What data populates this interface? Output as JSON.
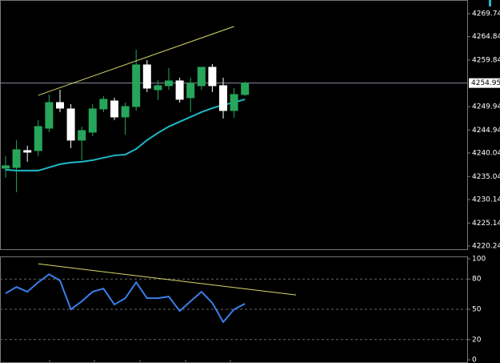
{
  "chart_data": [
    {
      "type": "candlestick",
      "categories": [
        null,
        null,
        null,
        null,
        null,
        null,
        null,
        null,
        null,
        null,
        null,
        null,
        null,
        null,
        null,
        null,
        null,
        null,
        null,
        null,
        null,
        null,
        null
      ],
      "open": [
        4236.81,
        4236.98,
        4240.57,
        4240.57,
        4245.34,
        4250.8,
        4249.44,
        4242.79,
        4244.49,
        4249.44,
        4251.14,
        4247.73,
        4249.95,
        4258.82,
        4253.53,
        4254.39,
        4255.41,
        4251.83,
        4254.39,
        4258.31,
        4254.39,
        4249.1,
        4252.51
      ],
      "high": [
        4239.37,
        4242.79,
        4241.59,
        4247.05,
        4252.51,
        4253.53,
        4250.46,
        4245.69,
        4250.46,
        4252.17,
        4251.83,
        4250.8,
        4262.06,
        4259.84,
        4255.58,
        4258.14,
        4256.09,
        4256.09,
        4258.31,
        4258.99,
        4256.09,
        4253.87,
        4255.24
      ],
      "low": [
        4234.77,
        4231.7,
        4238.18,
        4239.37,
        4244.49,
        4248.76,
        4241.08,
        4238.52,
        4243.64,
        4248.76,
        4247.05,
        4243.98,
        4249.1,
        4253.02,
        4251.32,
        4253.53,
        4250.8,
        4248.76,
        4253.53,
        4253.02,
        4247.39,
        4247.56,
        4252.17
      ],
      "close": [
        4237.33,
        4240.74,
        4240.23,
        4245.69,
        4250.8,
        4249.61,
        4242.79,
        4244.83,
        4249.44,
        4251.49,
        4247.73,
        4249.95,
        4258.82,
        4253.87,
        4254.39,
        4255.41,
        4251.49,
        4254.9,
        4258.31,
        4254.39,
        4249.1,
        4252.51,
        4254.95
      ],
      "up_color": "#26a65b",
      "down_color": "#ffffff",
      "ma": {
        "color": "#1fb8c9",
        "values": [
          4236.47,
          4236.3,
          4236.3,
          4236.3,
          4236.98,
          4237.67,
          4238.01,
          4238.18,
          4238.52,
          4239.03,
          4239.54,
          4239.71,
          4240.91,
          4242.79,
          4244.32,
          4245.69,
          4246.71,
          4247.73,
          4248.76,
          4249.61,
          4250.29,
          4250.8,
          4251.49
        ]
      },
      "trendline": {
        "color": "#d8d86a",
        "x": [
          3,
          21
        ],
        "values": [
          4252.34,
          4267.01
        ]
      },
      "current_price": 4254.95,
      "ylim": [
        4219.39,
        4272.64
      ],
      "yticks": [
        4269.74,
        4264.84,
        4259.84,
        4249.94,
        4244.94,
        4240.04,
        4235.04,
        4230.14,
        4225.14,
        4220.24
      ]
    },
    {
      "type": "line",
      "categories": [
        null,
        null,
        null,
        null,
        null,
        null,
        null,
        null,
        null,
        null,
        null,
        null,
        null,
        null,
        null,
        null,
        null,
        null,
        null,
        null,
        null,
        null,
        null
      ],
      "values": [
        65.8,
        72.1,
        67.4,
        76.8,
        84.7,
        78.4,
        50,
        57.9,
        67.4,
        70.5,
        54.7,
        61.0,
        76.8,
        61.0,
        61.0,
        62.6,
        48.4,
        57.9,
        67.4,
        56.3,
        37.4,
        50,
        55.5
      ],
      "color": "#3a7ee8",
      "trendline": {
        "color": "#d8d86a",
        "x": [
          3,
          26.7
        ],
        "values": [
          95.0,
          64.2
        ]
      },
      "ylim": [
        0,
        100
      ],
      "yticks": [
        100,
        80,
        50,
        20,
        0
      ],
      "levels": [
        80,
        50,
        20
      ]
    }
  ]
}
